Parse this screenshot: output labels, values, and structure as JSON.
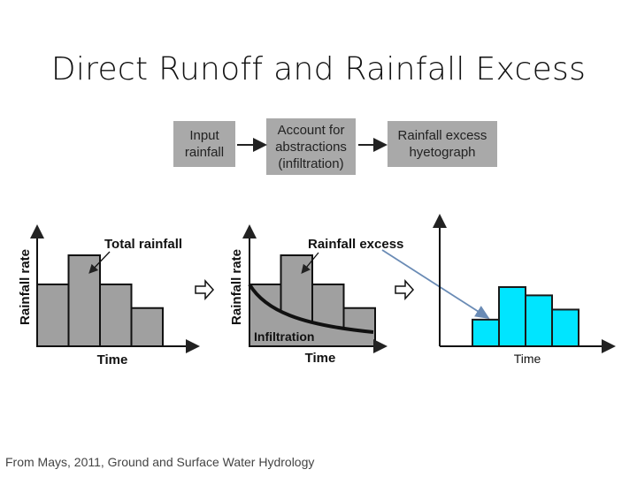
{
  "title": "Direct Runoff and Rainfall Excess",
  "flow_boxes": [
    {
      "text": "Input\nrainfall"
    },
    {
      "text": "Account for\nabstractions\n(infiltration)"
    },
    {
      "text": "Rainfall excess\nhyetograph"
    }
  ],
  "panel1": {
    "ylabel": "Rainfall rate",
    "xlabel": "Time",
    "annotation": "Total rainfall",
    "bar_values": [
      0.68,
      1.0,
      0.68,
      0.42
    ]
  },
  "panel2": {
    "ylabel": "Rainfall rate",
    "xlabel": "Time",
    "annotation": "Rainfall excess",
    "curve_label": "Infiltration",
    "bar_values": [
      0.68,
      1.0,
      0.68,
      0.42
    ]
  },
  "panel3": {
    "xlabel": "Time",
    "bar_values": [
      0.45,
      1.0,
      0.86,
      0.62
    ],
    "bar_color": "#00e5ff"
  },
  "footer": "From Mays, 2011, Ground and Surface Water Hydrology"
}
